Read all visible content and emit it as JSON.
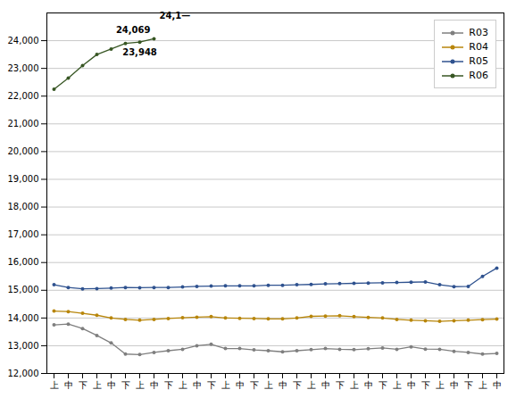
{
  "chart_data": {
    "type": "line",
    "categories": [
      "上",
      "中",
      "下",
      "上",
      "中",
      "下",
      "上",
      "中",
      "下",
      "上",
      "中",
      "下",
      "上",
      "中",
      "下",
      "上",
      "中",
      "下",
      "上",
      "中",
      "下",
      "上",
      "中",
      "下",
      "上",
      "中",
      "下",
      "上",
      "中",
      "下",
      "上",
      "中"
    ],
    "series": [
      {
        "name": "R03",
        "color": "#7f7f7f",
        "values": [
          13750,
          13780,
          13620,
          13370,
          13100,
          12700,
          12680,
          12760,
          12820,
          12870,
          13000,
          13050,
          12900,
          12900,
          12850,
          12820,
          12780,
          12820,
          12860,
          12900,
          12870,
          12860,
          12890,
          12920,
          12870,
          12960,
          12880,
          12870,
          12800,
          12760,
          12700,
          12720
        ]
      },
      {
        "name": "R04",
        "color": "#b8860b",
        "values": [
          14250,
          14230,
          14170,
          14100,
          14000,
          13950,
          13920,
          13950,
          13980,
          14010,
          14030,
          14050,
          14000,
          13990,
          13980,
          13970,
          13970,
          14000,
          14060,
          14070,
          14080,
          14050,
          14020,
          14000,
          13950,
          13920,
          13900,
          13880,
          13900,
          13920,
          13940,
          13960
        ]
      },
      {
        "name": "R05",
        "color": "#2f528f",
        "values": [
          15200,
          15100,
          15050,
          15060,
          15080,
          15100,
          15090,
          15100,
          15100,
          15120,
          15140,
          15150,
          15160,
          15160,
          15160,
          15180,
          15180,
          15200,
          15210,
          15230,
          15240,
          15250,
          15260,
          15270,
          15280,
          15290,
          15300,
          15200,
          15130,
          15140,
          15500,
          15800
        ]
      },
      {
        "name": "R06",
        "color": "#375623",
        "values": [
          22250,
          22650,
          23100,
          23500,
          23700,
          23900,
          23948,
          24069,
          null,
          null,
          null,
          null,
          null,
          null,
          null,
          null,
          null,
          null,
          null,
          null,
          null,
          null,
          null,
          null,
          null,
          null,
          null,
          null,
          null,
          null,
          null,
          null
        ]
      }
    ],
    "annotations": [
      {
        "text": "23,948",
        "x": 6,
        "y": 23948
      },
      {
        "text": "24,069",
        "x": 7,
        "y": 24069
      },
      {
        "text": "24,1—",
        "x": 7,
        "y": 24900
      }
    ],
    "ylim": [
      12000,
      25000
    ],
    "yticks": [
      {
        "value": 12000,
        "label": "12,000"
      },
      {
        "value": 13000,
        "label": "13,000"
      },
      {
        "value": 14000,
        "label": "14,000"
      },
      {
        "value": 15000,
        "label": "15,000"
      },
      {
        "value": 16000,
        "label": "16,000"
      },
      {
        "value": 17000,
        "label": "17,000"
      },
      {
        "value": 18000,
        "label": "18,000"
      },
      {
        "value": 19000,
        "label": "19,000"
      },
      {
        "value": 20000,
        "label": "20,000"
      },
      {
        "value": 21000,
        "label": "21,000"
      },
      {
        "value": 22000,
        "label": "22,000"
      },
      {
        "value": 23000,
        "label": "23,000"
      },
      {
        "value": 24000,
        "label": "24,000"
      }
    ],
    "grid": true,
    "legend": "upper right",
    "marker": "circle"
  }
}
